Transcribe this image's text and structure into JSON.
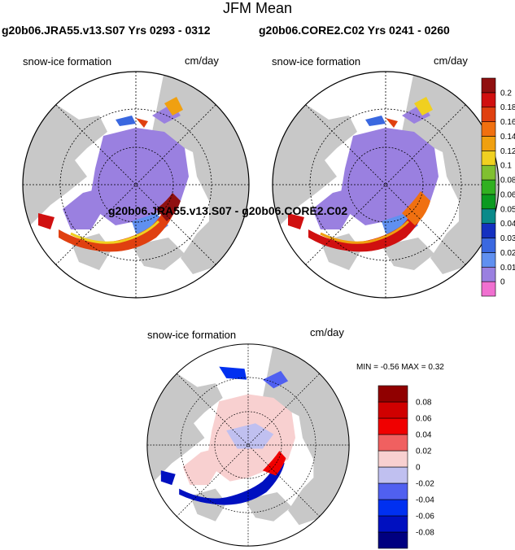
{
  "main_title": "JFM Mean",
  "panels": [
    {
      "title": "g20b06.JRA55.v13.S07  Yrs 0293 - 0312",
      "variable": "snow-ice formation",
      "units": "cm/day"
    },
    {
      "title": "g20b06.CORE2.C02  Yrs 0241 - 0260",
      "variable": "snow-ice formation",
      "units": "cm/day"
    }
  ],
  "diff_panel": {
    "title": "g20b06.JRA55.v13.S07 - g20b06.CORE2.C02",
    "variable": "snow-ice formation",
    "units": "cm/day",
    "minmax": "MIN =  -0.56 MAX =    0.32"
  },
  "colorbar_top": {
    "colors": [
      "#f070d0",
      "#9a80e0",
      "#6090f0",
      "#3a68e0",
      "#1430c0",
      "#0a8a8a",
      "#0a9a20",
      "#30b020",
      "#80c030",
      "#f0d020",
      "#f0a010",
      "#f07010",
      "#e04010",
      "#d01010",
      "#901010"
    ],
    "labels": [
      "0",
      "0.01",
      "0.02",
      "0.03",
      "0.04",
      "0.05",
      "0.06",
      "0.08",
      "0.1",
      "0.12",
      "0.14",
      "0.16",
      "0.18",
      "0.2"
    ]
  },
  "colorbar_diff": {
    "colors": [
      "#000080",
      "#0010c0",
      "#0030f0",
      "#5060f0",
      "#c0c0f0",
      "#f8d0d0",
      "#f06060",
      "#f00000",
      "#d00000",
      "#900000"
    ],
    "labels": [
      "-0.08",
      "-0.06",
      "-0.04",
      "-0.02",
      "0",
      "0.02",
      "0.04",
      "0.06",
      "0.08"
    ]
  },
  "map_colors": {
    "land": "#c8c8c8",
    "ocean": "#ffffff"
  }
}
